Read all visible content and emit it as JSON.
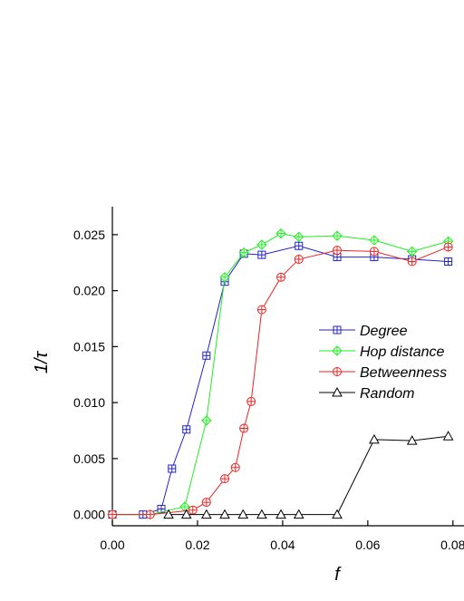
{
  "chart_data": {
    "type": "line",
    "xlabel": "f",
    "ylabel": "1/τ",
    "xlim": [
      0,
      0.0826
    ],
    "ylim": [
      -0.001,
      0.0275
    ],
    "xticks": [
      {
        "value": 0,
        "label": "0.00"
      },
      {
        "value": 0.02,
        "label": "0.02"
      },
      {
        "value": 0.04,
        "label": "0.04"
      },
      {
        "value": 0.06,
        "label": "0.06"
      },
      {
        "value": 0.08,
        "label": "0.08"
      }
    ],
    "yticks": [
      {
        "value": 0,
        "label": "0.000"
      },
      {
        "value": 0.005,
        "label": "0.005"
      },
      {
        "value": 0.01,
        "label": "0.010"
      },
      {
        "value": 0.015,
        "label": "0.015"
      },
      {
        "value": 0.02,
        "label": "0.020"
      },
      {
        "value": 0.025,
        "label": "0.025"
      }
    ],
    "series": [
      {
        "name": "Degree",
        "color": "#2222cc",
        "marker": "square",
        "x": [
          0,
          0.0072,
          0.0115,
          0.014,
          0.0174,
          0.0221,
          0.0264,
          0.0309,
          0.0351,
          0.0438,
          0.0528,
          0.0615,
          0.0704,
          0.0789
        ],
        "values": [
          0,
          0,
          0.0005,
          0.0041,
          0.0076,
          0.0142,
          0.0208,
          0.0233,
          0.0232,
          0.024,
          0.023,
          0.023,
          0.0228,
          0.0226
        ]
      },
      {
        "name": "Hop distance",
        "color": "#22ee22",
        "marker": "diamond",
        "x": [
          0,
          0.0089,
          0.017,
          0.0221,
          0.0264,
          0.0309,
          0.0351,
          0.0396,
          0.0438,
          0.0528,
          0.0615,
          0.0704,
          0.0789
        ],
        "values": [
          0,
          0,
          0.0007,
          0.0084,
          0.0212,
          0.0234,
          0.0241,
          0.0251,
          0.0248,
          0.0249,
          0.0245,
          0.0235,
          0.0244
        ]
      },
      {
        "name": "Betweenness",
        "color": "#ee2222",
        "marker": "circle",
        "x": [
          0,
          0.0089,
          0.0189,
          0.0221,
          0.0264,
          0.0289,
          0.0309,
          0.0326,
          0.0351,
          0.0396,
          0.0438,
          0.0528,
          0.0615,
          0.0704,
          0.0789
        ],
        "values": [
          0,
          0,
          0.0004,
          0.0011,
          0.0032,
          0.0042,
          0.0077,
          0.0101,
          0.0183,
          0.0212,
          0.0228,
          0.0236,
          0.0235,
          0.0226,
          0.0239
        ]
      },
      {
        "name": "Random",
        "color": "#000000",
        "marker": "triangle",
        "x": [
          0.0132,
          0.0174,
          0.0221,
          0.0264,
          0.0307,
          0.0351,
          0.0396,
          0.0438,
          0.0528,
          0.0615,
          0.0704,
          0.0789
        ],
        "values": [
          0,
          0,
          0,
          0,
          0,
          0,
          0,
          0,
          0,
          0.0067,
          0.0066,
          0.007
        ]
      }
    ]
  }
}
